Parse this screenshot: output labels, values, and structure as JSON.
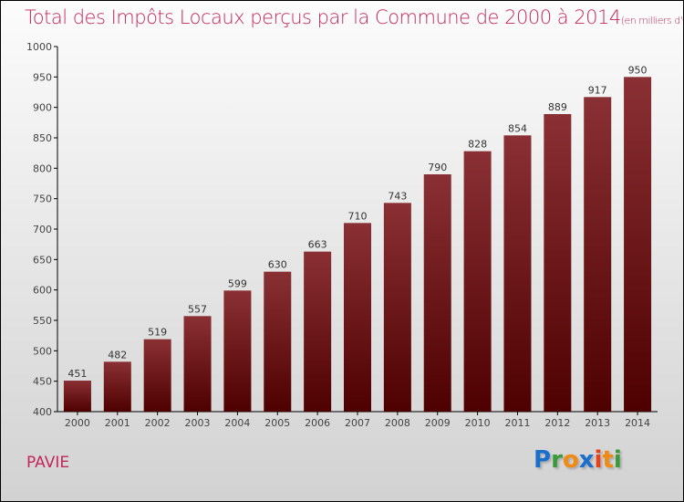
{
  "chart_data": {
    "type": "bar",
    "title": "Total des Impôts Locaux perçus par la Commune de 2000 à 2014",
    "subtitle": "(en milliers d'€)",
    "categories": [
      "2000",
      "2001",
      "2002",
      "2003",
      "2004",
      "2005",
      "2006",
      "2007",
      "2008",
      "2009",
      "2010",
      "2011",
      "2012",
      "2013",
      "2014"
    ],
    "values": [
      451,
      482,
      519,
      557,
      599,
      630,
      663,
      710,
      743,
      790,
      828,
      854,
      889,
      917,
      950
    ],
    "ylim": [
      400,
      1000
    ],
    "yticks": [
      400,
      450,
      500,
      550,
      600,
      650,
      700,
      750,
      800,
      850,
      900,
      950,
      1000
    ],
    "bar_color": "#7a1a1e",
    "grid": false
  },
  "commune": "PAVIE",
  "logo": "Proxiti",
  "colors": {
    "title": "#c2285a"
  }
}
